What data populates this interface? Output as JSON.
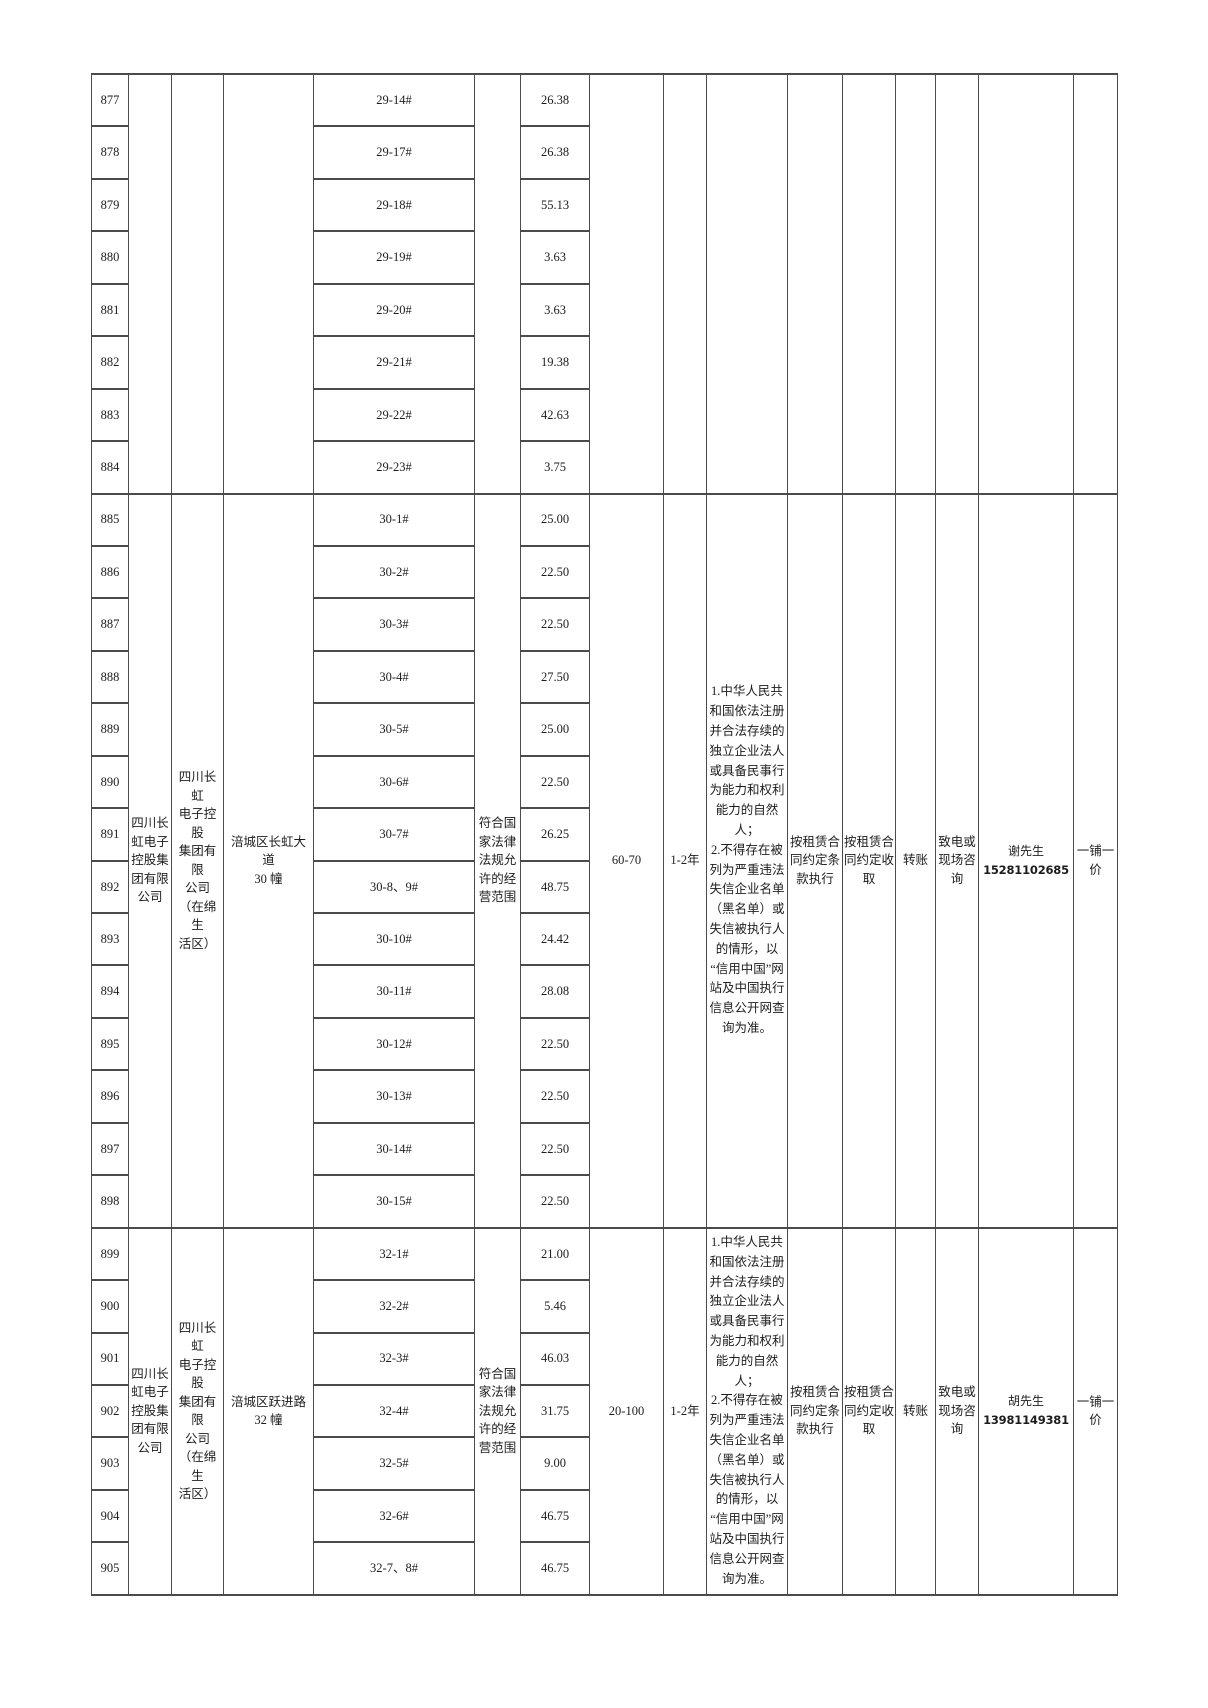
{
  "page": {
    "background_color": "#ffffff",
    "line_color": "#4b4b4b",
    "text_color": "#1d1d1d"
  },
  "table": {
    "blocks": [
      {
        "merged": {
          "company_full": "",
          "company_branch": "",
          "address": "",
          "scope": "",
          "rent": "",
          "term": "",
          "legal": "",
          "clause": "",
          "collect": "",
          "transfer": "",
          "consult": "",
          "contact_name": "",
          "contact_phone": "",
          "price": ""
        },
        "rows": [
          {
            "num": "877",
            "unit": "29-14#",
            "area": "26.38"
          },
          {
            "num": "878",
            "unit": "29-17#",
            "area": "26.38"
          },
          {
            "num": "879",
            "unit": "29-18#",
            "area": "55.13"
          },
          {
            "num": "880",
            "unit": "29-19#",
            "area": "3.63"
          },
          {
            "num": "881",
            "unit": "29-20#",
            "area": "3.63"
          },
          {
            "num": "882",
            "unit": "29-21#",
            "area": "19.38"
          },
          {
            "num": "883",
            "unit": "29-22#",
            "area": "42.63"
          },
          {
            "num": "884",
            "unit": "29-23#",
            "area": "3.75"
          }
        ]
      },
      {
        "merged": {
          "company_full": "四川长\n虹电子\n控股集\n团有限\n公司",
          "company_branch": "四川长虹\n电子控股\n集团有限\n公司\n（在绵生\n活区）",
          "address": "涪城区长虹大道\n30 幢",
          "scope": "符合国\n家法律\n法规允\n许的经\n营范围",
          "rent": "60-70",
          "term": "1-2年",
          "legal": "1.中华人民共\n和国依法注册\n并合法存续的\n独立企业法人\n或具备民事行\n为能力和权利\n能力的自然\n人；\n2.不得存在被\n列为严重违法\n失信企业名单\n（黑名单）或\n失信被执行人\n的情形，以\n“信用中国”网\n站及中国执行\n信息公开网查\n询为准。",
          "clause": "按租赁合\n同约定条\n款执行",
          "collect": "按租赁合\n同约定收\n取",
          "transfer": "转账",
          "consult": "致电或\n现场咨\n询",
          "contact_name": "谢先生",
          "contact_phone": "15281102685",
          "price": "一铺一\n价"
        },
        "rows": [
          {
            "num": "885",
            "unit": "30-1#",
            "area": "25.00"
          },
          {
            "num": "886",
            "unit": "30-2#",
            "area": "22.50"
          },
          {
            "num": "887",
            "unit": "30-3#",
            "area": "22.50"
          },
          {
            "num": "888",
            "unit": "30-4#",
            "area": "27.50"
          },
          {
            "num": "889",
            "unit": "30-5#",
            "area": "25.00"
          },
          {
            "num": "890",
            "unit": "30-6#",
            "area": "22.50"
          },
          {
            "num": "891",
            "unit": "30-7#",
            "area": "26.25"
          },
          {
            "num": "892",
            "unit": "30-8、9#",
            "area": "48.75"
          },
          {
            "num": "893",
            "unit": "30-10#",
            "area": "24.42"
          },
          {
            "num": "894",
            "unit": "30-11#",
            "area": "28.08"
          },
          {
            "num": "895",
            "unit": "30-12#",
            "area": "22.50"
          },
          {
            "num": "896",
            "unit": "30-13#",
            "area": "22.50"
          },
          {
            "num": "897",
            "unit": "30-14#",
            "area": "22.50"
          },
          {
            "num": "898",
            "unit": "30-15#",
            "area": "22.50"
          }
        ]
      },
      {
        "merged": {
          "company_full": "四川长\n虹电子\n控股集\n团有限\n公司",
          "company_branch": "四川长虹\n电子控股\n集团有限\n公司\n（在绵生\n活区）",
          "address": "涪城区跃进路\n32 幢",
          "scope": "符合国\n家法律\n法规允\n许的经\n营范围",
          "rent": "20-100",
          "term": "1-2年",
          "legal": "1.中华人民共\n和国依法注册\n并合法存续的\n独立企业法人\n或具备民事行\n为能力和权利\n能力的自然\n人；\n2.不得存在被\n列为严重违法\n失信企业名单\n（黑名单）或\n失信被执行人\n的情形，以\n“信用中国”网\n站及中国执行\n信息公开网查\n询为准。",
          "clause": "按租赁合\n同约定条\n款执行",
          "collect": "按租赁合\n同约定收\n取",
          "transfer": "转账",
          "consult": "致电或\n现场咨\n询",
          "contact_name": "胡先生",
          "contact_phone": "13981149381",
          "price": "一铺一\n价"
        },
        "rows": [
          {
            "num": "899",
            "unit": "32-1#",
            "area": "21.00"
          },
          {
            "num": "900",
            "unit": "32-2#",
            "area": "5.46"
          },
          {
            "num": "901",
            "unit": "32-3#",
            "area": "46.03"
          },
          {
            "num": "902",
            "unit": "32-4#",
            "area": "31.75"
          },
          {
            "num": "903",
            "unit": "32-5#",
            "area": "9.00"
          },
          {
            "num": "904",
            "unit": "32-6#",
            "area": "46.75"
          },
          {
            "num": "905",
            "unit": "32-7、8#",
            "area": "46.75"
          }
        ]
      }
    ]
  }
}
